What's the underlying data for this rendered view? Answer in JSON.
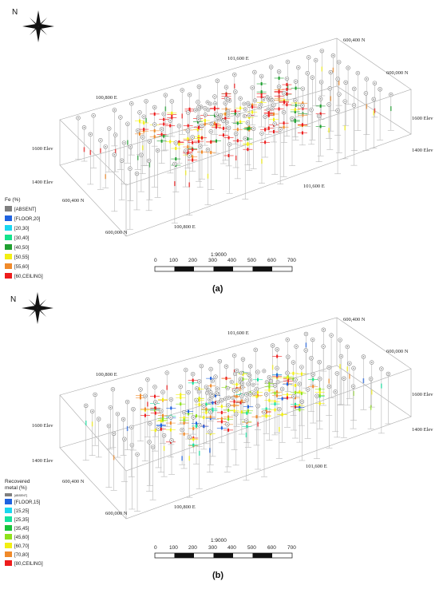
{
  "colors": {
    "absent": "#7f7f7f",
    "hole": "#b8b8b8",
    "box": "#a8a8a8"
  },
  "panels": [
    {
      "caption": "(a)",
      "north": "N",
      "axes": {
        "e1": "101,600 E",
        "e2": "100,800 E",
        "e3": "101,600 E",
        "e4": "100,800 E",
        "n1": "600,400 N",
        "n2": "600,000 N",
        "n3": "600,400 N",
        "n4": "600,000 N",
        "elev_l1": "1600 Elev",
        "elev_l2": "1400 Elev",
        "elev_r1": "1600 Elev",
        "elev_r2": "1400 Elev"
      },
      "legend": {
        "title_lines": [
          "Fe (%)"
        ],
        "items": [
          {
            "label": "[ABSENT]",
            "color": "#7f7f7f"
          },
          {
            "label": "[FLOOR,20]",
            "color": "#1f63e0"
          },
          {
            "label": "[20,30]",
            "color": "#19d7f0"
          },
          {
            "label": "[30,40]",
            "color": "#14e38c"
          },
          {
            "label": "[40,50]",
            "color": "#1fa030"
          },
          {
            "label": "[50,55]",
            "color": "#f2ef12"
          },
          {
            "label": "[55,60]",
            "color": "#f08a2a"
          },
          {
            "label": "[60,CEILING]",
            "color": "#ee1c1c"
          }
        ]
      },
      "scale": {
        "ratio": "1:9000",
        "ticks": [
          "0",
          "100",
          "200",
          "300",
          "400",
          "500",
          "600",
          "700"
        ]
      }
    },
    {
      "caption": "(b)",
      "north": "N",
      "axes": {
        "e1": "101,600 E",
        "e2": "100,800 E",
        "e3": "101,600 E",
        "e4": "100,800 E",
        "n1": "600,400 N",
        "n2": "600,000 N",
        "n3": "600,400 N",
        "n4": "600,000 N",
        "elev_l1": "1600 Elev",
        "elev_l2": "1400 Elev",
        "elev_r1": "1600 Elev",
        "elev_r2": "1400 Elev"
      },
      "legend": {
        "title_lines": [
          "Recovered",
          "metal (%)"
        ],
        "items": [
          {
            "label": "[ABSENT]",
            "color": "#7f7f7f"
          },
          {
            "label": "[FLOOR,15]",
            "color": "#1f63e0"
          },
          {
            "label": "[15,25]",
            "color": "#19d7f0"
          },
          {
            "label": "[25,35]",
            "color": "#14e3a0"
          },
          {
            "label": "[35,45]",
            "color": "#18c43a"
          },
          {
            "label": "[45,60]",
            "color": "#8ee21a"
          },
          {
            "label": "[60,70]",
            "color": "#f2ef12"
          },
          {
            "label": "[70,80]",
            "color": "#f08a2a"
          },
          {
            "label": "[80,CEILING]",
            "color": "#ee1c1c"
          }
        ]
      },
      "scale": {
        "ratio": "1:9000",
        "ticks": [
          "0",
          "100",
          "200",
          "300",
          "400",
          "500",
          "600",
          "700"
        ]
      }
    }
  ]
}
